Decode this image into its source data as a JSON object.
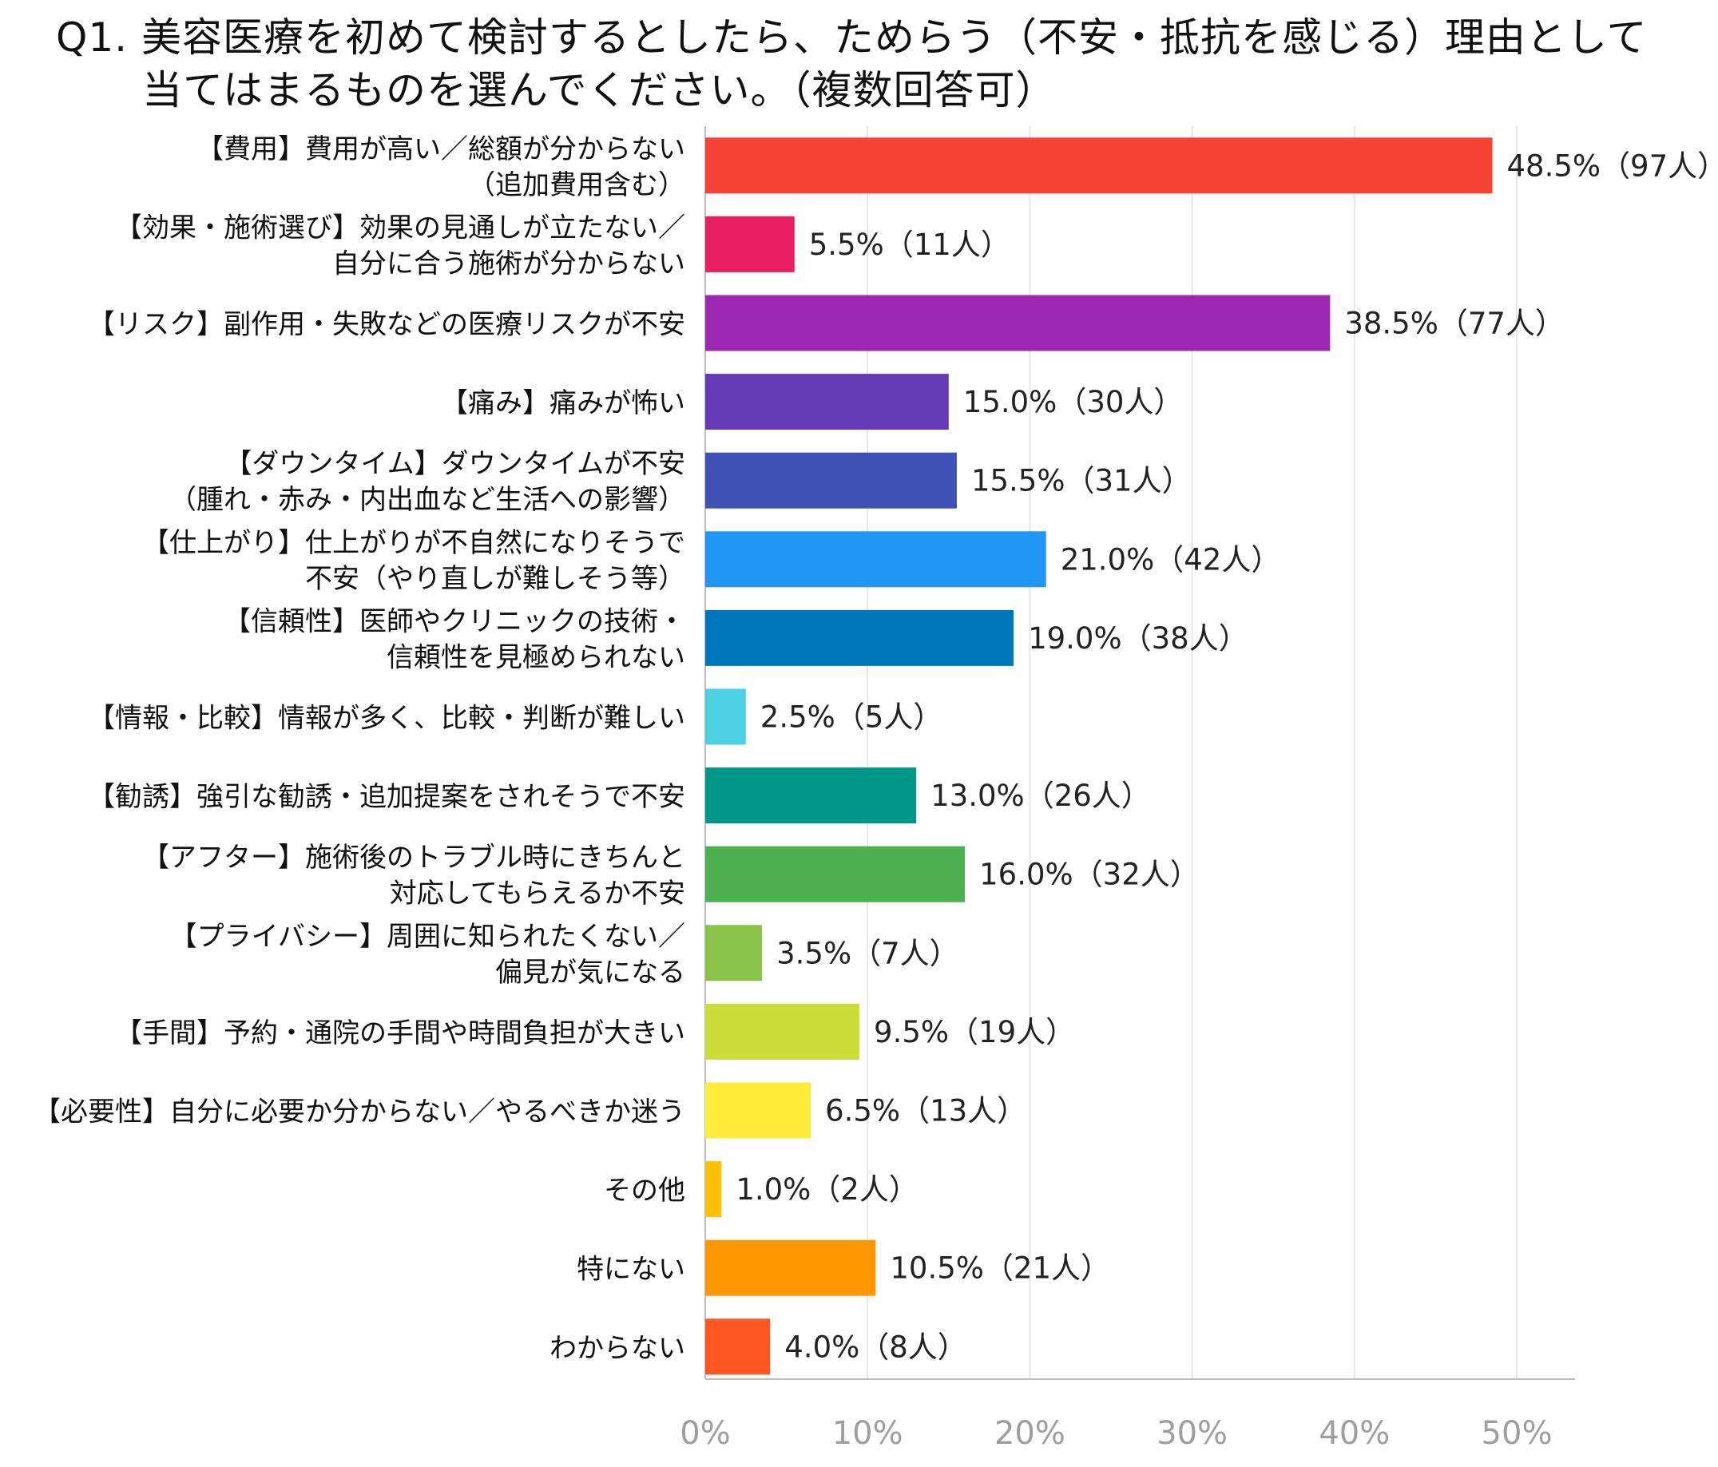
{
  "chart_data": {
    "type": "bar",
    "orientation": "horizontal",
    "title": "Q1. 美容医療を初めて検討するとしたら、ためらう（不安・抵抗を感じる）理由として当てはまるものを選んでください。（複数回答可）",
    "title_lines": [
      "Q1. 美容医療を初めて検討するとしたら、ためらう（不安・抵抗を感じる）理由として",
      "当てはまるものを選んでください。（複数回答可）"
    ],
    "categories": [
      [
        "【費用】費用が高い／総額が分からない",
        "（追加費用含む）"
      ],
      [
        "【効果・施術選び】効果の見通しが立たない／",
        "自分に合う施術が分からない"
      ],
      [
        "【リスク】副作用・失敗などの医療リスクが不安"
      ],
      [
        "【痛み】痛みが怖い"
      ],
      [
        "【ダウンタイム】ダウンタイムが不安",
        "（腫れ・赤み・内出血など生活への影響）"
      ],
      [
        "【仕上がり】仕上がりが不自然になりそうで",
        "不安（やり直しが難しそう等）"
      ],
      [
        "【信頼性】医師やクリニックの技術・",
        "信頼性を見極められない"
      ],
      [
        "【情報・比較】情報が多く、比較・判断が難しい"
      ],
      [
        "【勧誘】強引な勧誘・追加提案をされそうで不安"
      ],
      [
        "【アフター】施術後のトラブル時にきちんと",
        "対応してもらえるか不安"
      ],
      [
        "【プライバシー】周囲に知られたくない／",
        "偏見が気になる"
      ],
      [
        "【手間】予約・通院の手間や時間負担が大きい"
      ],
      [
        "【必要性】自分に必要か分からない／やるべきか迷う"
      ],
      [
        "その他"
      ],
      [
        "特にない"
      ],
      [
        "わからない"
      ]
    ],
    "values": [
      48.5,
      5.5,
      38.5,
      15.0,
      15.5,
      21.0,
      19.0,
      2.5,
      13.0,
      16.0,
      3.5,
      9.5,
      6.5,
      1.0,
      10.5,
      4.0
    ],
    "data_labels": [
      "48.5%（97人）",
      "5.5%（11人）",
      "38.5%（77人）",
      "15.0%（30人）",
      "15.5%（31人）",
      "21.0%（42人）",
      "19.0%（38人）",
      "2.5%（5人）",
      "13.0%（26人）",
      "16.0%（32人）",
      "3.5%（7人）",
      "9.5%（19人）",
      "6.5%（13人）",
      "1.0%（2人）",
      "10.5%（21人）",
      "4.0%（8人）"
    ],
    "colors": [
      "#f44336",
      "#e91e63",
      "#9c27b0",
      "#673ab7",
      "#3f51b5",
      "#2196f3",
      "#0277bd",
      "#4dd0e1",
      "#009688",
      "#4caf50",
      "#8bc34a",
      "#cddc39",
      "#ffeb3b",
      "#ffc107",
      "#ff9800",
      "#ff5722"
    ],
    "xlim": [
      0,
      54
    ],
    "xticks": [
      0,
      10,
      20,
      30,
      40,
      50
    ],
    "xtick_labels": [
      "0%",
      "10%",
      "20%",
      "30%",
      "40%",
      "50%"
    ],
    "grid": true,
    "xlabel": "",
    "ylabel": ""
  }
}
